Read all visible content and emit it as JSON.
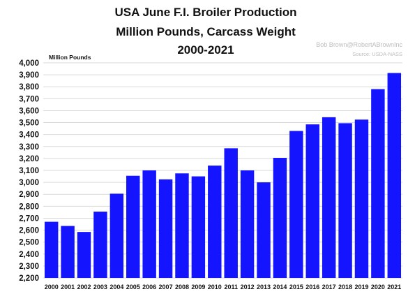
{
  "chart_data": {
    "type": "bar",
    "title": [
      "USA June F.I. Broiler Production",
      "Million Pounds, Carcass Weight",
      "2000-2021"
    ],
    "ylabel": "Million Pounds",
    "xlabel": "",
    "attribution": "Bob Brown@RobertABrownInc",
    "source": "Source: USDA-NASS",
    "categories": [
      "2000",
      "2001",
      "2002",
      "2003",
      "2004",
      "2005",
      "2006",
      "2007",
      "2008",
      "2009",
      "2010",
      "2011",
      "2012",
      "2013",
      "2014",
      "2015",
      "2016",
      "2017",
      "2018",
      "2019",
      "2020",
      "2021"
    ],
    "values": [
      2670,
      2635,
      2585,
      2755,
      2905,
      3055,
      3100,
      3025,
      3075,
      3050,
      3140,
      3285,
      3100,
      3000,
      3205,
      3430,
      3485,
      3545,
      3495,
      3525,
      3780,
      3915
    ],
    "ylim": [
      2200,
      4000
    ],
    "yticks": [
      2200,
      2300,
      2400,
      2500,
      2600,
      2700,
      2800,
      2900,
      3000,
      3100,
      3200,
      3300,
      3400,
      3500,
      3600,
      3700,
      3800,
      3900,
      4000
    ],
    "ytick_labels": [
      "2,200",
      "2,300",
      "2,400",
      "2,500",
      "2,600",
      "2,700",
      "2,800",
      "2,900",
      "3,000",
      "3,100",
      "3,200",
      "3,300",
      "3,400",
      "3,500",
      "3,600",
      "3,700",
      "3,800",
      "3,900",
      "4,000"
    ],
    "bar_color": "#1414ff",
    "grid": true,
    "grid_color": "#d9d9d9",
    "legend": false
  }
}
